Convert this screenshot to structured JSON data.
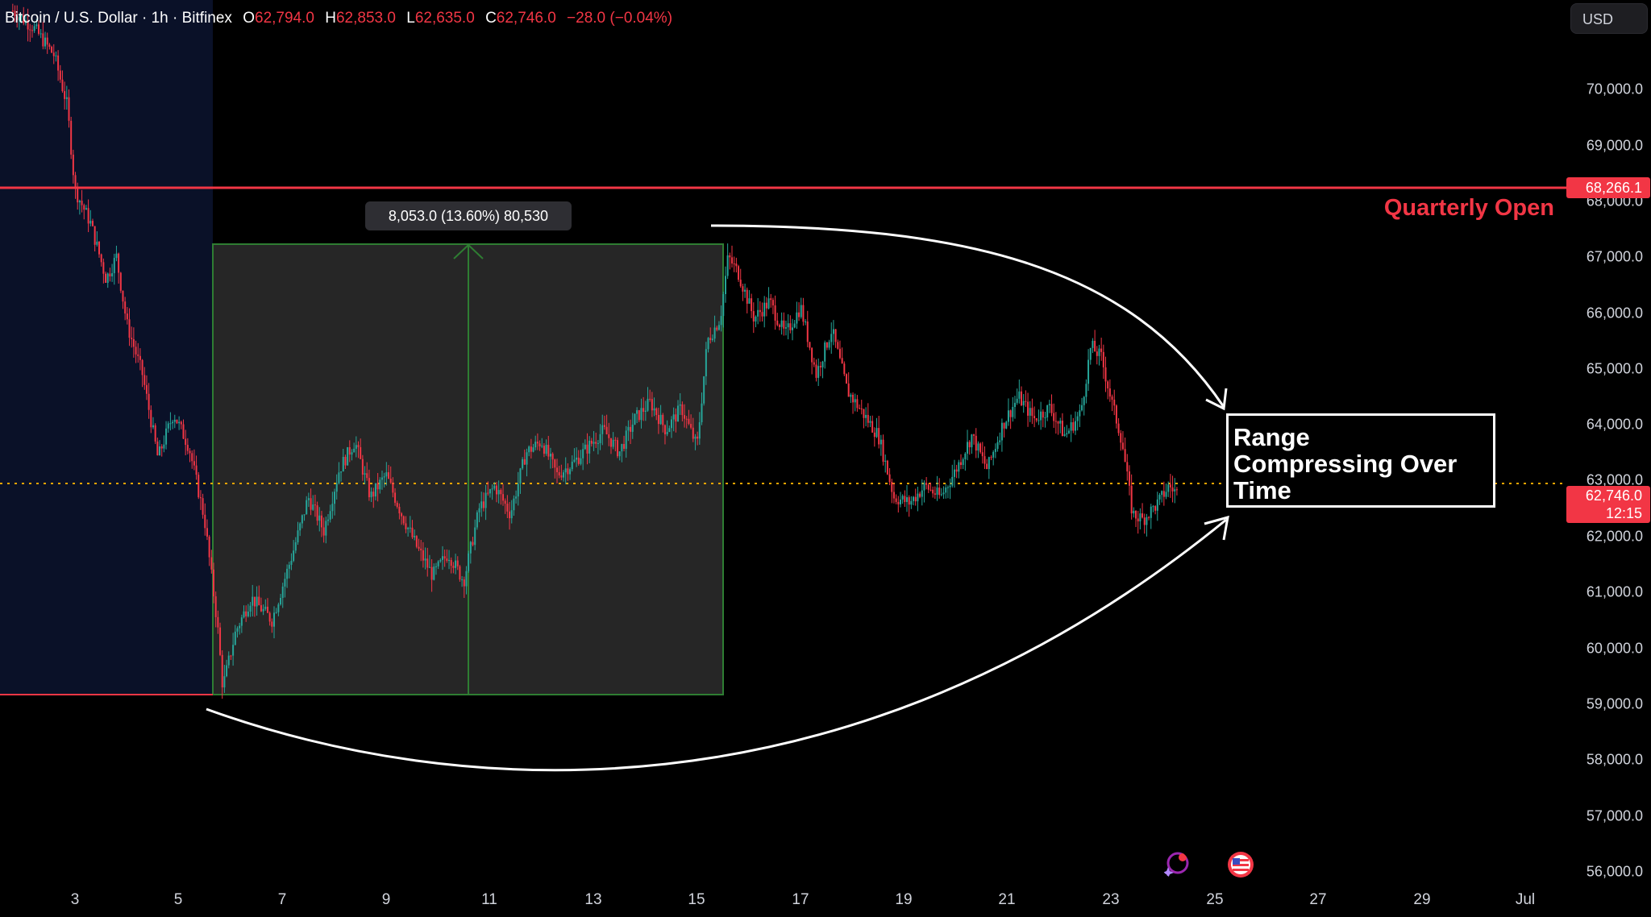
{
  "legend": {
    "symbol": "Bitcoin / U.S. Dollar · 1h · Bitfinex",
    "open_label": "O",
    "open": "62,794.0",
    "high_label": "H",
    "high": "62,853.0",
    "low_label": "L",
    "low": "62,635.0",
    "close_label": "C",
    "close": "62,746.0",
    "change": "−28.0 (−0.04%)"
  },
  "currency_button": "USD",
  "price_axis": {
    "ticks": [
      "70,000.0",
      "69,000.0",
      "68,000.0",
      "67,000.0",
      "66,000.0",
      "65,000.0",
      "64,000.0",
      "63,000.0",
      "62,000.0",
      "61,000.0",
      "60,000.0",
      "59,000.0",
      "58,000.0",
      "57,000.0",
      "56,000.0"
    ],
    "quarterly_open_badge": "68,266.1",
    "last_price_badge": "62,746.0",
    "countdown_badge": "12:15"
  },
  "time_axis": [
    "3",
    "5",
    "7",
    "9",
    "11",
    "13",
    "15",
    "17",
    "19",
    "21",
    "23",
    "25",
    "27",
    "29",
    "Jul"
  ],
  "measure_label": "8,053.0 (13.60%) 80,530",
  "quarterly_open_label": "Quarterly Open",
  "note_lines": [
    "Range",
    "Compressing Over",
    "Time"
  ],
  "icons": [
    "sparkle-alert-icon",
    "us-flag-icon"
  ],
  "colors": {
    "background": "#000000",
    "up": "#26a69a",
    "down": "#f23645",
    "quarterly_open_line": "#f23645",
    "measure_box": "#262626",
    "measure_border": "#2e7d32",
    "highlight_region": "#0a1128",
    "last_price_line": "#f7a600"
  },
  "chart_data": {
    "type": "candlestick",
    "timeframe": "1h",
    "y_range": [
      55800,
      71600
    ],
    "x_range_days": [
      1.8,
      31.2
    ],
    "levels": {
      "quarterly_open": 68266.1,
      "last_price": 62746.0
    },
    "measure": {
      "from_day": 5.7,
      "to_day": 15.5,
      "low": 59200,
      "high": 67253,
      "change": "8,053.0 (13.60%)"
    },
    "path": [
      [
        1.8,
        71400
      ],
      [
        2.2,
        71100
      ],
      [
        2.6,
        70600
      ],
      [
        2.85,
        69700
      ],
      [
        3.0,
        68200
      ],
      [
        3.3,
        67600
      ],
      [
        3.6,
        66600
      ],
      [
        3.8,
        67000
      ],
      [
        4.0,
        65800
      ],
      [
        4.3,
        64900
      ],
      [
        4.6,
        63400
      ],
      [
        4.9,
        64200
      ],
      [
        5.2,
        63600
      ],
      [
        5.5,
        62300
      ],
      [
        5.75,
        60400
      ],
      [
        5.85,
        59300
      ],
      [
        6.1,
        60300
      ],
      [
        6.4,
        60900
      ],
      [
        6.8,
        60500
      ],
      [
        7.2,
        61700
      ],
      [
        7.5,
        62700
      ],
      [
        7.8,
        62100
      ],
      [
        8.1,
        63200
      ],
      [
        8.4,
        63700
      ],
      [
        8.7,
        62700
      ],
      [
        9.0,
        63100
      ],
      [
        9.3,
        62400
      ],
      [
        9.6,
        61800
      ],
      [
        9.9,
        61300
      ],
      [
        10.2,
        61700
      ],
      [
        10.5,
        61200
      ],
      [
        10.8,
        62500
      ],
      [
        11.1,
        62900
      ],
      [
        11.4,
        62400
      ],
      [
        11.7,
        63500
      ],
      [
        12.0,
        63700
      ],
      [
        12.3,
        63100
      ],
      [
        12.6,
        63300
      ],
      [
        12.9,
        63600
      ],
      [
        13.2,
        63900
      ],
      [
        13.5,
        63500
      ],
      [
        13.8,
        64100
      ],
      [
        14.1,
        64400
      ],
      [
        14.4,
        63900
      ],
      [
        14.7,
        64300
      ],
      [
        15.0,
        63600
      ],
      [
        15.2,
        65500
      ],
      [
        15.45,
        65900
      ],
      [
        15.6,
        67000
      ],
      [
        15.8,
        66700
      ],
      [
        16.1,
        65900
      ],
      [
        16.4,
        66200
      ],
      [
        16.7,
        65600
      ],
      [
        17.0,
        66100
      ],
      [
        17.3,
        64900
      ],
      [
        17.6,
        65700
      ],
      [
        17.9,
        64600
      ],
      [
        18.2,
        64200
      ],
      [
        18.5,
        63800
      ],
      [
        18.8,
        62700
      ],
      [
        19.1,
        62600
      ],
      [
        19.4,
        62900
      ],
      [
        19.7,
        62700
      ],
      [
        20.0,
        63200
      ],
      [
        20.3,
        63800
      ],
      [
        20.6,
        63200
      ],
      [
        20.9,
        64000
      ],
      [
        21.2,
        64500
      ],
      [
        21.5,
        64100
      ],
      [
        21.8,
        64300
      ],
      [
        22.1,
        63800
      ],
      [
        22.4,
        64200
      ],
      [
        22.6,
        65400
      ],
      [
        22.8,
        65200
      ],
      [
        23.0,
        64400
      ],
      [
        23.2,
        63700
      ],
      [
        23.4,
        62400
      ],
      [
        23.6,
        62300
      ],
      [
        23.9,
        62600
      ],
      [
        24.1,
        62900
      ],
      [
        24.3,
        62750
      ]
    ]
  }
}
